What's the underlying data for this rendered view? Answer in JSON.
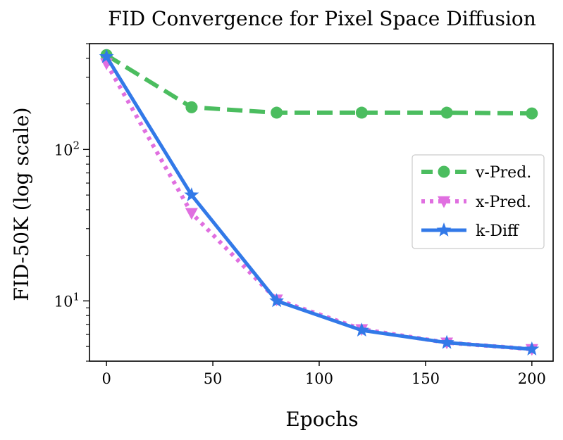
{
  "chart_data": {
    "type": "line",
    "title": "FID Convergence for Pixel Space Diffusion",
    "xlabel": "Epochs",
    "ylabel": "FID-50K (log scale)",
    "yscale": "log",
    "xlim": [
      -8,
      210
    ],
    "ylim": [
      4.0,
      500
    ],
    "x": [
      0,
      40,
      80,
      120,
      160,
      200
    ],
    "x_ticks": [
      "0",
      "50",
      "100",
      "150",
      "200"
    ],
    "y_ticks": [
      {
        "base": "10",
        "exp": "1"
      },
      {
        "base": "10",
        "exp": "2"
      }
    ],
    "legend_position": "center-right",
    "series": [
      {
        "name": "v-Pred.",
        "values": [
          420,
          190,
          175,
          175,
          175,
          173
        ],
        "color": "#4bbd5f",
        "style": "dashed",
        "marker": "circle"
      },
      {
        "name": "x-Pred.",
        "values": [
          370,
          38,
          10.2,
          6.5,
          5.3,
          4.8
        ],
        "color": "#e06fe0",
        "style": "dotted",
        "marker": "triangle-down"
      },
      {
        "name": "k-Diff",
        "values": [
          410,
          50,
          10,
          6.4,
          5.3,
          4.8
        ],
        "color": "#3279e8",
        "style": "solid",
        "marker": "star"
      }
    ]
  }
}
